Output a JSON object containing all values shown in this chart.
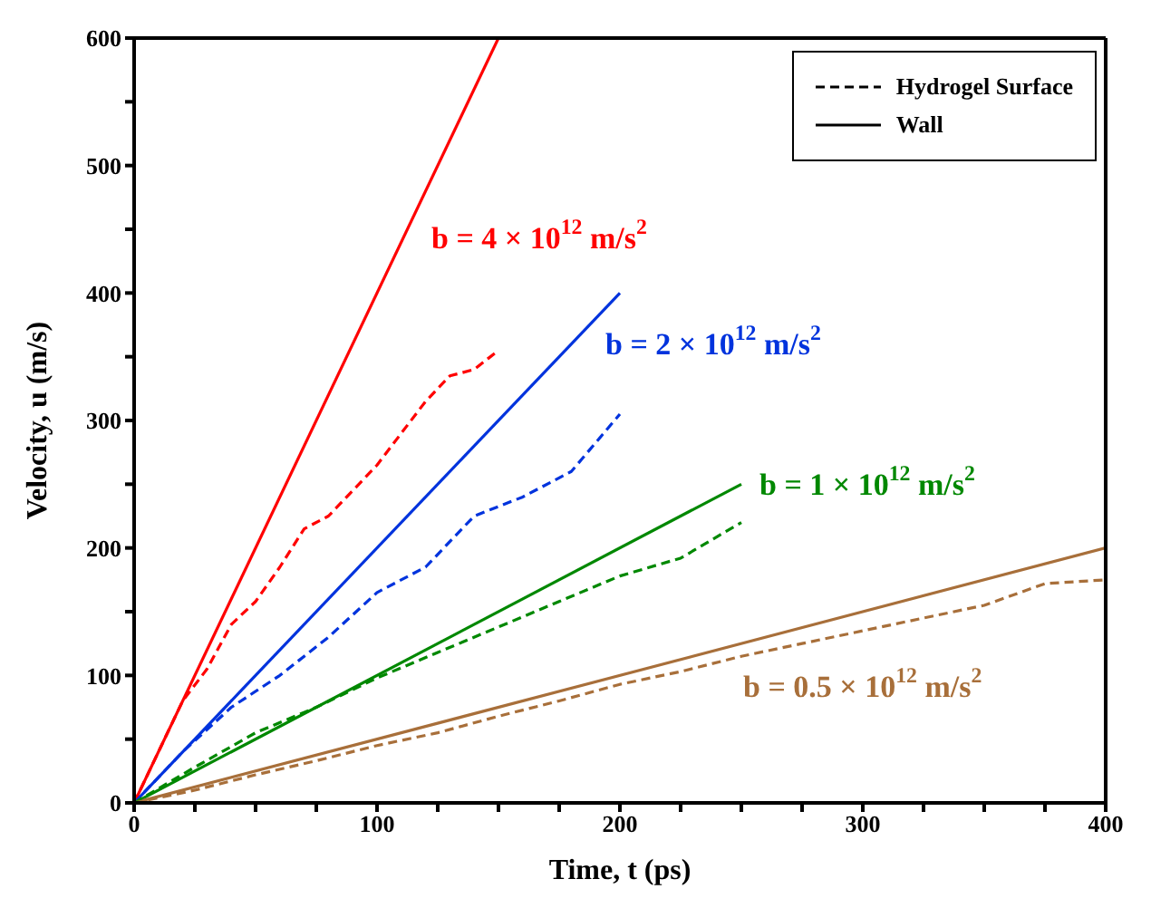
{
  "chart_data": {
    "type": "line",
    "xlabel": "Time, t (ps)",
    "ylabel": "Velocity, u (m/s)",
    "xlim": [
      0,
      400
    ],
    "ylim": [
      0,
      600
    ],
    "xticks": [
      0,
      {
        "value": 25,
        "label": null
      },
      {
        "value": 50,
        "label": null
      },
      {
        "value": 75,
        "label": null
      },
      100,
      {
        "value": 125,
        "label": null
      },
      {
        "value": 150,
        "label": null
      },
      {
        "value": 175,
        "label": null
      },
      200,
      {
        "value": 225,
        "label": null
      },
      {
        "value": 250,
        "label": null
      },
      {
        "value": 275,
        "label": null
      },
      300,
      {
        "value": 325,
        "label": null
      },
      {
        "value": 350,
        "label": null
      },
      {
        "value": 375,
        "label": null
      },
      400
    ],
    "yticks": [
      0,
      {
        "value": 50,
        "label": null
      },
      100,
      {
        "value": 150,
        "label": null
      },
      200,
      {
        "value": 250,
        "label": null
      },
      300,
      {
        "value": 350,
        "label": null
      },
      400,
      {
        "value": 450,
        "label": null
      },
      500,
      {
        "value": 550,
        "label": null
      },
      600
    ],
    "grid": false,
    "marker": "none",
    "series": [
      {
        "name": "b = 4 × 10$^{12}$ m/s$^{2}$",
        "color": "#ff0000",
        "line_style": "solid",
        "x": [
          0,
          150
        ],
        "values": [
          0,
          600
        ]
      },
      {
        "name": "b = 2 × 10$^{12}$ m/s$^{2}$",
        "color": "#0033dd",
        "line_style": "solid",
        "x": [
          0,
          200
        ],
        "values": [
          0,
          400
        ]
      },
      {
        "name": "b = 1 × 10$^{12}$ m/s$^{2}$",
        "color": "#008800",
        "line_style": "solid",
        "x": [
          0,
          250
        ],
        "values": [
          0,
          250
        ]
      },
      {
        "name": "b = 0.5 × 10$^{12}$ m/s$^{2}$",
        "color": "#a86f3a",
        "line_style": "solid",
        "x": [
          0,
          400
        ],
        "values": [
          0,
          200
        ]
      },
      {
        "color": "#ff0000",
        "line_style": "dashed",
        "x": [
          0,
          10,
          20,
          30,
          40,
          50,
          60,
          70,
          80,
          90,
          100,
          110,
          120,
          130,
          140,
          150
        ],
        "values": [
          0,
          40,
          80,
          105,
          140,
          158,
          185,
          215,
          225,
          245,
          265,
          290,
          315,
          335,
          340,
          355
        ]
      },
      {
        "color": "#0033dd",
        "line_style": "dashed",
        "x": [
          0,
          20,
          40,
          60,
          80,
          100,
          120,
          140,
          160,
          180,
          200
        ],
        "values": [
          0,
          40,
          75,
          100,
          130,
          165,
          185,
          225,
          240,
          260,
          305
        ]
      },
      {
        "color": "#008800",
        "line_style": "dashed",
        "x": [
          0,
          25,
          50,
          75,
          100,
          125,
          150,
          175,
          200,
          225,
          250
        ],
        "values": [
          0,
          28,
          55,
          75,
          98,
          118,
          138,
          158,
          178,
          192,
          220
        ]
      },
      {
        "color": "#a86f3a",
        "line_style": "dashed",
        "x": [
          0,
          25,
          50,
          75,
          100,
          125,
          150,
          175,
          200,
          225,
          250,
          275,
          300,
          325,
          350,
          375,
          400
        ],
        "values": [
          0,
          10,
          22,
          33,
          45,
          55,
          68,
          80,
          93,
          103,
          115,
          125,
          135,
          145,
          155,
          172,
          175
        ]
      }
    ],
    "annotations": [
      "Hydrogel Surface",
      "Wall"
    ]
  }
}
